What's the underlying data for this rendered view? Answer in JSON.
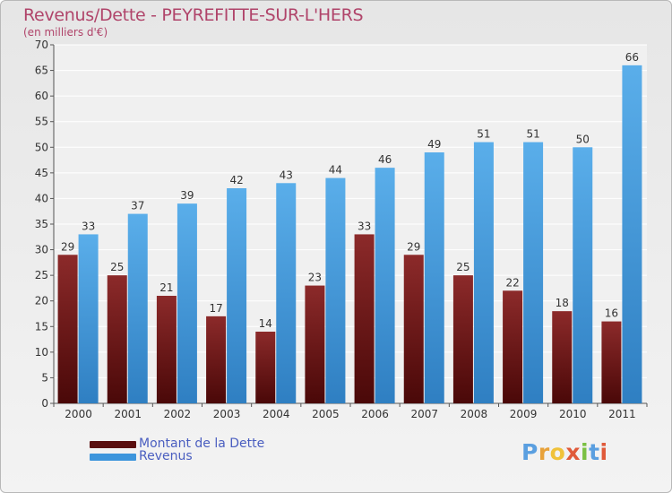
{
  "title": "Revenus/Dette - PEYREFITTE-SUR-L'HERS",
  "subtitle": "(en milliers d'€)",
  "logo": "Proxiti",
  "colors": {
    "dette": "#7a1a1a",
    "revenus": "#3d95dc",
    "title": "#b0446a",
    "legend_text": "#4a5ec0"
  },
  "chart_data": {
    "type": "bar",
    "categories": [
      "2000",
      "2001",
      "2002",
      "2003",
      "2004",
      "2005",
      "2006",
      "2007",
      "2008",
      "2009",
      "2010",
      "2011"
    ],
    "series": [
      {
        "name": "Montant de la Dette",
        "values": [
          29,
          25,
          21,
          17,
          14,
          23,
          33,
          29,
          25,
          22,
          18,
          16
        ]
      },
      {
        "name": "Revenus",
        "values": [
          33,
          37,
          39,
          42,
          43,
          44,
          46,
          49,
          51,
          51,
          50,
          66
        ]
      }
    ],
    "ylim": [
      0,
      70
    ],
    "yticks": [
      0,
      5,
      10,
      15,
      20,
      25,
      30,
      35,
      40,
      45,
      50,
      55,
      60,
      65,
      70
    ],
    "grid": true,
    "legend_position": "bottom-left"
  }
}
